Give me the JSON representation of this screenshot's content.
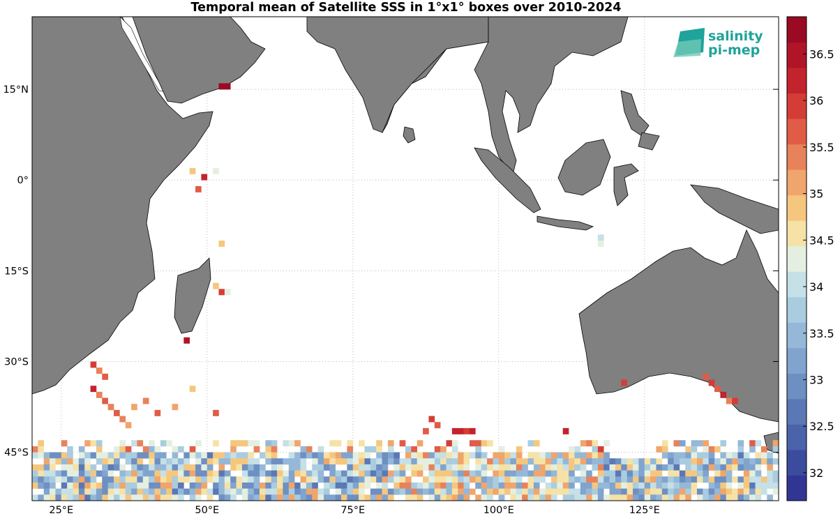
{
  "title": "Temporal mean of Satellite SSS in 1°x1° boxes over 2010-2024",
  "logo": {
    "line1": "salinity",
    "line2": "pi-mep"
  },
  "map": {
    "lon_range": [
      20,
      148
    ],
    "lat_range": [
      -53,
      27
    ],
    "lon_ticks": [
      {
        "value": 25,
        "label": "25°E"
      },
      {
        "value": 50,
        "label": "50°E"
      },
      {
        "value": 75,
        "label": "75°E"
      },
      {
        "value": 100,
        "label": "100°E"
      },
      {
        "value": 125,
        "label": "125°E"
      }
    ],
    "lat_ticks": [
      {
        "value": 15,
        "label": "15°N"
      },
      {
        "value": 0,
        "label": "0°"
      },
      {
        "value": -15,
        "label": "15°S"
      },
      {
        "value": -30,
        "label": "30°S"
      },
      {
        "value": -45,
        "label": "45°S"
      }
    ],
    "land_color": "#808080",
    "grid": true
  },
  "colorbar": {
    "min": 31.7,
    "max": 36.9,
    "ticks": [
      "32",
      "32.5",
      "33",
      "33.5",
      "34",
      "34.5",
      "35",
      "35.5",
      "36",
      "36.5"
    ],
    "colors": [
      "#313695",
      "#3b4c9e",
      "#4a63aa",
      "#5a78b5",
      "#6d8fc2",
      "#80a4cd",
      "#95b8d8",
      "#a9ccdf",
      "#c5e0e6",
      "#e4efe1",
      "#f6e2a6",
      "#f5c77e",
      "#f0a56c",
      "#e8825b",
      "#e05c46",
      "#d43d36",
      "#c3232d",
      "#b01427",
      "#9a0a22"
    ]
  },
  "chart_data": {
    "type": "heatmap",
    "title": "Temporal mean of Satellite SSS in 1°x1° boxes over 2010-2024",
    "xlabel": "",
    "ylabel": "",
    "xlim": [
      20,
      148
    ],
    "ylim": [
      -53,
      27
    ],
    "unit_note": "1°x1° boxes",
    "colorbar_range": [
      31.7,
      36.9
    ],
    "cells": [
      {
        "lon": 52,
        "lat": 15,
        "value": 36.7
      },
      {
        "lon": 53,
        "lat": 15,
        "value": 36.7
      },
      {
        "lon": 47,
        "lat": 1,
        "value": 34.8
      },
      {
        "lon": 51,
        "lat": 1,
        "value": 34.4
      },
      {
        "lon": 49,
        "lat": 0,
        "value": 36.3
      },
      {
        "lon": 48,
        "lat": -2,
        "value": 35.6
      },
      {
        "lon": 52,
        "lat": -11,
        "value": 34.8
      },
      {
        "lon": 51,
        "lat": -18,
        "value": 34.9
      },
      {
        "lon": 52,
        "lat": -19,
        "value": 36.0
      },
      {
        "lon": 53,
        "lat": -19,
        "value": 34.4
      },
      {
        "lon": 117,
        "lat": -10,
        "value": 34.0
      },
      {
        "lon": 117,
        "lat": -11,
        "value": 34.3
      },
      {
        "lon": 46,
        "lat": -27,
        "value": 36.5
      },
      {
        "lon": 30,
        "lat": -31,
        "value": 36.0
      },
      {
        "lon": 31,
        "lat": -32,
        "value": 35.5
      },
      {
        "lon": 32,
        "lat": -33,
        "value": 35.8
      },
      {
        "lon": 30,
        "lat": -35,
        "value": 36.2
      },
      {
        "lon": 31,
        "lat": -36,
        "value": 35.4
      },
      {
        "lon": 32,
        "lat": -37,
        "value": 35.7
      },
      {
        "lon": 33,
        "lat": -38,
        "value": 35.3
      },
      {
        "lon": 34,
        "lat": -39,
        "value": 35.6
      },
      {
        "lon": 35,
        "lat": -40,
        "value": 35.4
      },
      {
        "lon": 36,
        "lat": -41,
        "value": 35.2
      },
      {
        "lon": 37,
        "lat": -38,
        "value": 35.0
      },
      {
        "lon": 39,
        "lat": -37,
        "value": 35.3
      },
      {
        "lon": 41,
        "lat": -39,
        "value": 35.8
      },
      {
        "lon": 44,
        "lat": -38,
        "value": 35.2
      },
      {
        "lon": 47,
        "lat": -35,
        "value": 34.9
      },
      {
        "lon": 51,
        "lat": -39,
        "value": 35.7
      },
      {
        "lon": 88,
        "lat": -40,
        "value": 36.0
      },
      {
        "lon": 89,
        "lat": -41,
        "value": 35.6
      },
      {
        "lon": 87,
        "lat": -42,
        "value": 35.8
      },
      {
        "lon": 92,
        "lat": -42,
        "value": 36.2
      },
      {
        "lon": 93,
        "lat": -42,
        "value": 36.1
      },
      {
        "lon": 94,
        "lat": -42,
        "value": 35.9
      },
      {
        "lon": 95,
        "lat": -42,
        "value": 36.3
      },
      {
        "lon": 111,
        "lat": -42,
        "value": 36.1
      },
      {
        "lon": 135,
        "lat": -33,
        "value": 35.6
      },
      {
        "lon": 136,
        "lat": -34,
        "value": 35.9
      },
      {
        "lon": 137,
        "lat": -35,
        "value": 35.8
      },
      {
        "lon": 138,
        "lat": -36,
        "value": 36.2
      },
      {
        "lon": 139,
        "lat": -37,
        "value": 35.5
      },
      {
        "lon": 140,
        "lat": -37,
        "value": 36.0
      },
      {
        "lon": 121,
        "lat": -34,
        "value": 36.0
      }
    ]
  }
}
